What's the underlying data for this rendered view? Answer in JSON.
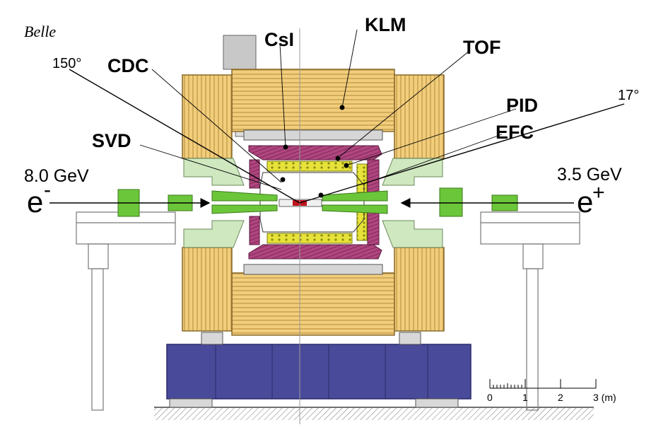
{
  "title": "Belle",
  "labels": {
    "klm": "KLM",
    "csi": "CsI",
    "tof": "TOF",
    "cdc": "CDC",
    "pid": "PID",
    "efc": "EFC",
    "svd": "SVD"
  },
  "angles": {
    "backward": "150°",
    "forward": "17°"
  },
  "beams": {
    "left_energy": "8.0 GeV",
    "left_particle": "e",
    "left_charge": "-",
    "right_energy": "3.5 GeV",
    "right_particle": "e",
    "right_charge": "+"
  },
  "scale": {
    "ticks": [
      "0",
      "1",
      "2",
      "3 (m)"
    ]
  },
  "colors": {
    "klm_yoke": "#f2cd7c",
    "klm_line": "#b08a3a",
    "ecl": "#b0457f",
    "pid": "#e6e23a",
    "endcap_green": "#cfe8c0",
    "magnet_green": "#6cc63a",
    "support_base": "#4a4a9a",
    "steel": "#c8c8c8"
  }
}
